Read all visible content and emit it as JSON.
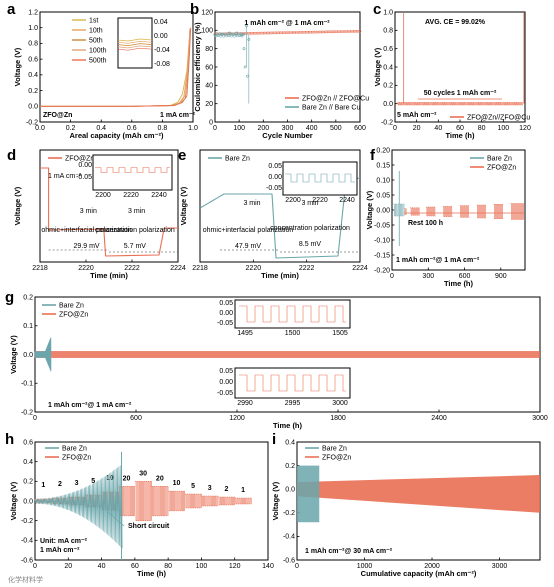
{
  "colors": {
    "bare": "#6aa6ab",
    "zfo": "#e96f53",
    "orange": "#e8a05a",
    "gold": "#d9b445",
    "tan": "#c9a07a"
  },
  "watermark": "化学材料学",
  "chart_data": [
    {
      "id": "a",
      "panel_label": "a",
      "type": "line",
      "xlabel": "Areal capacity (mAh cm⁻²)",
      "ylabel": "Voltage (V)",
      "xlim": [
        0,
        1.0
      ],
      "ylim": [
        -0.2,
        1.2
      ],
      "xticks": [
        "0.0",
        "0.2",
        "0.4",
        "0.6",
        "0.8",
        "1.0"
      ],
      "yticks": [
        "-0.2",
        "0.0",
        "0.2",
        "0.4",
        "0.6",
        "0.8",
        "1.0",
        "1.2"
      ],
      "legend": [
        "1st",
        "10th",
        "50th",
        "100th",
        "500th"
      ],
      "legend_colors": [
        "#d9b445",
        "#e8a05a",
        "#c98a3a",
        "#e2a37a",
        "#e96f53"
      ],
      "inset_yticks": [
        "0.04",
        "0.00",
        "-0.04",
        "-0.08"
      ],
      "annotations": [
        "ZFO@Zn",
        "1 mA cm⁻²"
      ],
      "series": [
        {
          "name": "1st",
          "x": [
            0,
            0.3,
            0.6,
            0.85,
            0.9,
            0.93,
            0.96,
            0.98
          ],
          "y": [
            0.0,
            0.0,
            0.0,
            0.01,
            0.05,
            0.15,
            0.45,
            0.95
          ]
        },
        {
          "name": "10th",
          "x": [
            0,
            0.3,
            0.6,
            0.86,
            0.91,
            0.94,
            0.96,
            0.98
          ],
          "y": [
            0.0,
            0.0,
            0.0,
            0.01,
            0.04,
            0.12,
            0.4,
            0.97
          ]
        },
        {
          "name": "50th",
          "x": [
            0,
            0.3,
            0.6,
            0.87,
            0.92,
            0.95,
            0.97,
            0.98
          ],
          "y": [
            0.0,
            0.0,
            0.0,
            0.01,
            0.04,
            0.1,
            0.5,
            0.98
          ]
        },
        {
          "name": "100th",
          "x": [
            0,
            0.3,
            0.6,
            0.88,
            0.92,
            0.95,
            0.97,
            0.98
          ],
          "y": [
            0.0,
            0.0,
            0.0,
            0.01,
            0.05,
            0.14,
            0.55,
            0.99
          ]
        },
        {
          "name": "500th",
          "x": [
            0,
            0.3,
            0.6,
            0.88,
            0.93,
            0.96,
            0.975,
            0.985
          ],
          "y": [
            0.0,
            0.0,
            0.0,
            0.01,
            0.05,
            0.13,
            0.6,
            1.0
          ]
        }
      ]
    },
    {
      "id": "b",
      "panel_label": "b",
      "type": "scatter",
      "xlabel": "Cycle Number",
      "ylabel": "Coulombic efficiency (%)",
      "xlim": [
        0,
        600
      ],
      "ylim": [
        0,
        120
      ],
      "xticks": [
        "0",
        "100",
        "200",
        "300",
        "400",
        "500",
        "600"
      ],
      "yticks": [
        "0",
        "20",
        "40",
        "60",
        "80",
        "100",
        "120"
      ],
      "annotations": [
        "1 mAh cm⁻² @ 1 mA cm⁻²"
      ],
      "legend": [
        "ZFO@Zn // ZFO@Cu",
        "Bare Zn // Bare Cu"
      ],
      "series": [
        {
          "name": "ZFO@Zn // ZFO@Cu",
          "x": [
            0,
            50,
            100,
            150,
            200,
            300,
            400,
            500,
            600
          ],
          "y": [
            96,
            97,
            97,
            98,
            98,
            99,
            99,
            99,
            99
          ]
        },
        {
          "name": "Bare Zn // Bare Cu",
          "x": [
            0,
            30,
            60,
            90,
            110,
            120,
            125,
            130,
            135,
            140
          ],
          "y": [
            95,
            96,
            97,
            97,
            95,
            80,
            60,
            105,
            50,
            90
          ]
        }
      ]
    },
    {
      "id": "c",
      "panel_label": "c",
      "type": "line",
      "xlabel": "Time (h)",
      "ylabel": "Voltage (V)",
      "xlim": [
        0,
        120
      ],
      "ylim": [
        -0.2,
        1.0
      ],
      "xticks": [
        "0",
        "20",
        "40",
        "60",
        "80",
        "100",
        "120"
      ],
      "yticks": [
        "-0.2",
        "0.0",
        "0.2",
        "0.4",
        "0.6",
        "0.8",
        "1.0"
      ],
      "annotations": [
        "AVG. CE = 99.02%",
        "50 cycles 1 mAh cm⁻²",
        "5 mAh cm⁻²"
      ],
      "legend": [
        "ZFO@Zn//ZFO@Cu"
      ]
    },
    {
      "id": "d",
      "panel_label": "d",
      "type": "line",
      "xlabel": "Time (min)",
      "ylabel": "Voltage (V)",
      "xlim": [
        2217,
        2225
      ],
      "xticks": [
        "2218",
        "2220",
        "2222",
        "2224"
      ],
      "inset_xticks": [
        "2200",
        "2220",
        "2240"
      ],
      "inset_yticks": [
        "0.00",
        "-0.05"
      ],
      "legend": [
        "ZFO@Zn"
      ],
      "annotations": [
        "1 mA cm⁻²",
        "3 min",
        "3 min",
        "ohmic+interfacial polarization",
        "29.9 mV",
        "concentration polarization",
        "5.7 mV"
      ]
    },
    {
      "id": "e",
      "panel_label": "e",
      "type": "line",
      "xlabel": "Time (min)",
      "ylabel": "Voltage (V)",
      "xlim": [
        2217,
        2225
      ],
      "xticks": [
        "2218",
        "2220",
        "2222",
        "2224"
      ],
      "inset_xticks": [
        "2200",
        "2220",
        "2240"
      ],
      "inset_yticks": [
        "0.05",
        "0.00",
        "-0.05"
      ],
      "legend": [
        "Bare Zn"
      ],
      "annotations": [
        "3 min",
        "3 min",
        "ohmic+interfacial polarization",
        "47.9 mV",
        "concentration polarization",
        "8.5 mV"
      ]
    },
    {
      "id": "f",
      "panel_label": "f",
      "type": "line",
      "xlabel": "Time (h)",
      "ylabel": "Voltage (V)",
      "xlim": [
        0,
        1100
      ],
      "ylim": [
        -0.2,
        0.2
      ],
      "xticks": [
        "0",
        "300",
        "600",
        "900"
      ],
      "yticks": [
        "-0.20",
        "-0.15",
        "-0.10",
        "-0.05",
        "0.00",
        "0.05",
        "0.10",
        "0.15",
        "0.20"
      ],
      "legend": [
        "Bare Zn",
        "ZFO@Zn"
      ],
      "annotations": [
        "Rest 100 h",
        "1 mAh cm⁻²@ 1 mA cm⁻²"
      ]
    },
    {
      "id": "g",
      "panel_label": "g",
      "type": "line",
      "xlabel": "Time (h)",
      "ylabel": "Voltage (V)",
      "xlim": [
        0,
        3000
      ],
      "ylim": [
        -0.2,
        0.2
      ],
      "xticks": [
        "0",
        "600",
        "1200",
        "1800",
        "2400",
        "3000"
      ],
      "yticks": [
        "-0.2",
        "-0.1",
        "0.0",
        "0.1",
        "0.2"
      ],
      "legend": [
        "Bare Zn",
        "ZFO@Zn"
      ],
      "annotations": [
        "1 mAh cm⁻²@ 1 mA cm⁻²"
      ],
      "inset1": {
        "xticks": [
          "1495",
          "1500",
          "1505"
        ],
        "yticks": [
          "0.05",
          "0.00",
          "-0.05"
        ]
      },
      "inset2": {
        "xticks": [
          "2990",
          "2995",
          "3000"
        ],
        "yticks": [
          "0.05",
          "0.00",
          "-0.05"
        ]
      }
    },
    {
      "id": "h",
      "panel_label": "h",
      "type": "line",
      "xlabel": "Time (h)",
      "ylabel": "Voltage (V)",
      "xlim": [
        0,
        140
      ],
      "ylim": [
        -0.6,
        0.6
      ],
      "xticks": [
        "0",
        "20",
        "40",
        "60",
        "80",
        "100",
        "120",
        "140"
      ],
      "yticks": [
        "-0.6",
        "-0.4",
        "-0.2",
        "0.0",
        "0.2",
        "0.4",
        "0.6"
      ],
      "legend": [
        "Bare Zn",
        "ZFO@Zn"
      ],
      "rate_labels": [
        "1",
        "2",
        "3",
        "5",
        "10",
        "20",
        "30",
        "20",
        "10",
        "5",
        "3",
        "2",
        "1"
      ],
      "annotations": [
        "Short circuit",
        "Unit: mA cm⁻²",
        "1 mAh cm⁻²"
      ]
    },
    {
      "id": "i",
      "panel_label": "i",
      "type": "line",
      "xlabel": "Cumulative capacity (mAh cm⁻²)",
      "ylabel": "Voltage (V)",
      "xlim": [
        0,
        3600
      ],
      "ylim": [
        -0.6,
        0.4
      ],
      "xticks": [
        "0",
        "1000",
        "2000",
        "3000"
      ],
      "yticks": [
        "-0.6",
        "-0.4",
        "-0.2",
        "0.0",
        "0.2",
        "0.4"
      ],
      "legend": [
        "Bare Zn",
        "ZFO@Zn"
      ],
      "annotations": [
        "1 mAh cm⁻²@ 30 mA cm⁻²"
      ]
    }
  ]
}
